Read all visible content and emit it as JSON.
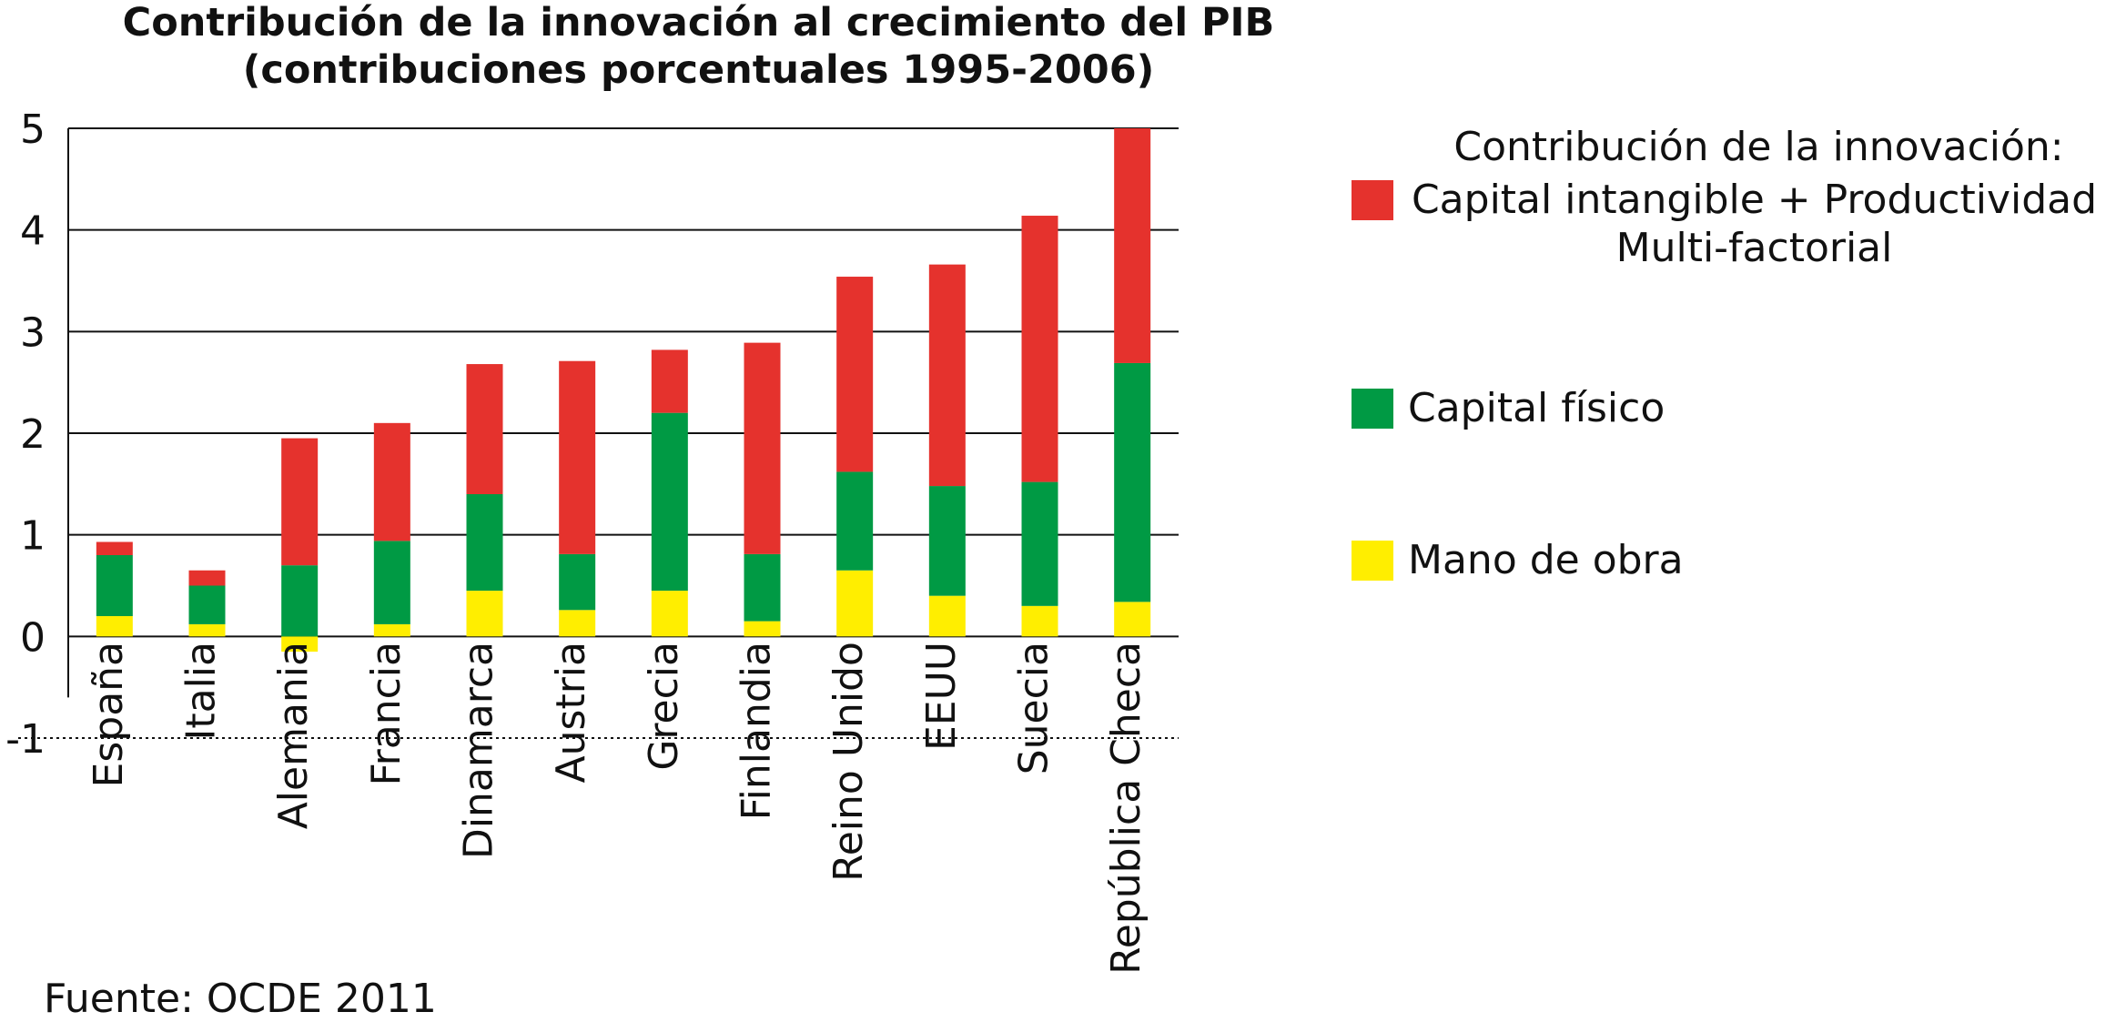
{
  "chart_data": {
    "type": "bar",
    "stacked": true,
    "title": "Contribución de la innovación al crecimiento del PIB",
    "subtitle": "(contribuciones porcentuales 1995-2006)",
    "categories": [
      "España",
      "Italia",
      "Alemania",
      "Francia",
      "Dinamarca",
      "Austria",
      "Grecia",
      "Finlandia",
      "Reino Unido",
      "EEUU",
      "Suecia",
      "República Checa"
    ],
    "series": [
      {
        "name": "Mano de obra",
        "color": "#ffee00",
        "values": [
          0.2,
          0.12,
          -0.15,
          0.12,
          0.45,
          0.26,
          0.45,
          0.15,
          0.65,
          0.4,
          0.3,
          0.34
        ]
      },
      {
        "name": "Capital físico",
        "color": "#009a44",
        "values": [
          0.6,
          0.38,
          0.7,
          0.82,
          0.95,
          0.55,
          1.75,
          0.66,
          0.97,
          1.08,
          1.22,
          2.35
        ]
      },
      {
        "name": "Contribución de la innovación: Capital intangible + Productividad Multi-factorial",
        "color": "#e5322d",
        "values": [
          0.13,
          0.15,
          1.25,
          1.16,
          1.28,
          1.9,
          0.62,
          2.08,
          1.92,
          2.18,
          2.62,
          2.31
        ]
      }
    ],
    "ylim": [
      -1,
      5
    ],
    "yticks": [
      "-1",
      "0",
      "1",
      "2",
      "3",
      "4",
      "5"
    ],
    "grid": true,
    "legend_position": "right"
  },
  "legend": {
    "innovation_title": "Contribución de la innovación:",
    "innovation_label": "Capital intangible + Productividad Multi-factorial",
    "physical_label": "Capital físico",
    "labor_label": "Mano de obra"
  },
  "source": "Fuente: OCDE 2011"
}
